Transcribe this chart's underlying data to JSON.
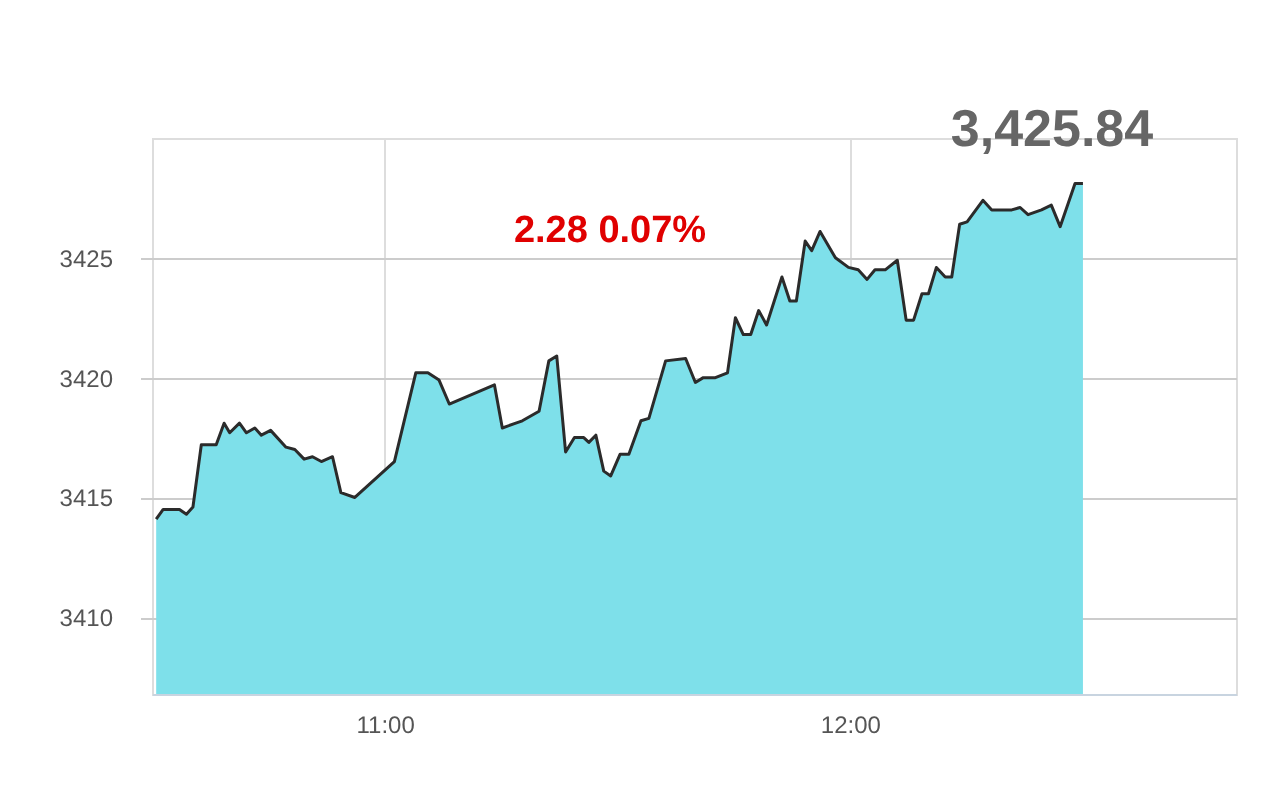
{
  "chart_data": {
    "type": "area",
    "annotations": [
      "3,425.84",
      "2.28 0.07%"
    ],
    "x": [
      10.509,
      10.524,
      10.559,
      10.574,
      10.588,
      10.606,
      10.638,
      10.655,
      10.667,
      10.688,
      10.703,
      10.721,
      10.735,
      10.755,
      10.788,
      10.807,
      10.827,
      10.845,
      10.864,
      10.888,
      10.906,
      10.936,
      11.021,
      11.067,
      11.093,
      11.117,
      11.139,
      11.236,
      11.253,
      11.282,
      11.296,
      11.332,
      11.353,
      11.37,
      11.389,
      11.408,
      11.428,
      11.439,
      11.454,
      11.471,
      11.486,
      11.506,
      11.525,
      11.551,
      11.568,
      11.604,
      11.647,
      11.668,
      11.685,
      11.711,
      11.737,
      11.754,
      11.771,
      11.787,
      11.804,
      11.821,
      11.854,
      11.871,
      11.885,
      11.904,
      11.918,
      11.936,
      11.969,
      11.997,
      12.018,
      12.037,
      12.054,
      12.076,
      12.102,
      12.121,
      12.137,
      12.155,
      12.169,
      12.186,
      12.205,
      12.219,
      12.236,
      12.252,
      12.286,
      12.305,
      12.348,
      12.366,
      12.383,
      12.412,
      12.433,
      12.452,
      12.484,
      12.501
    ],
    "series": [
      {
        "color": "#7ee0ea",
        "values": [
          3414.1,
          3414.5,
          3414.5,
          3414.3,
          3414.6,
          3417.2,
          3417.2,
          3418.1,
          3417.7,
          3418.1,
          3417.7,
          3417.9,
          3417.6,
          3417.8,
          3417.1,
          3417.0,
          3416.6,
          3416.7,
          3416.5,
          3416.7,
          3415.2,
          3415.0,
          3416.5,
          3420.2,
          3420.2,
          3419.9,
          3418.9,
          3419.7,
          3417.9,
          3418.1,
          3418.2,
          3418.6,
          3420.7,
          3420.9,
          3416.9,
          3417.5,
          3417.5,
          3417.3,
          3417.6,
          3416.1,
          3415.9,
          3416.8,
          3416.8,
          3418.2,
          3418.3,
          3420.7,
          3420.8,
          3419.8,
          3420.0,
          3420.0,
          3420.2,
          3422.5,
          3421.8,
          3421.8,
          3422.8,
          3422.2,
          3424.2,
          3423.2,
          3423.2,
          3425.7,
          3425.3,
          3426.1,
          3425.0,
          3424.6,
          3424.5,
          3424.1,
          3424.5,
          3424.5,
          3424.9,
          3422.4,
          3422.4,
          3423.5,
          3423.5,
          3424.6,
          3424.2,
          3424.2,
          3426.4,
          3426.5,
          3427.4,
          3427.0,
          3427.0,
          3427.1,
          3426.8,
          3427.0,
          3427.2,
          3426.3,
          3428.1,
          3428.1
        ]
      }
    ],
    "xlim": [
      10.5,
      12.83
    ],
    "xticks": [
      {
        "value": 11,
        "label": "11:00"
      },
      {
        "value": 12,
        "label": "12:00"
      }
    ],
    "ylim": [
      3406.8,
      3430
    ],
    "yticks": [
      3410,
      3415,
      3420,
      3425
    ],
    "grid": true
  }
}
